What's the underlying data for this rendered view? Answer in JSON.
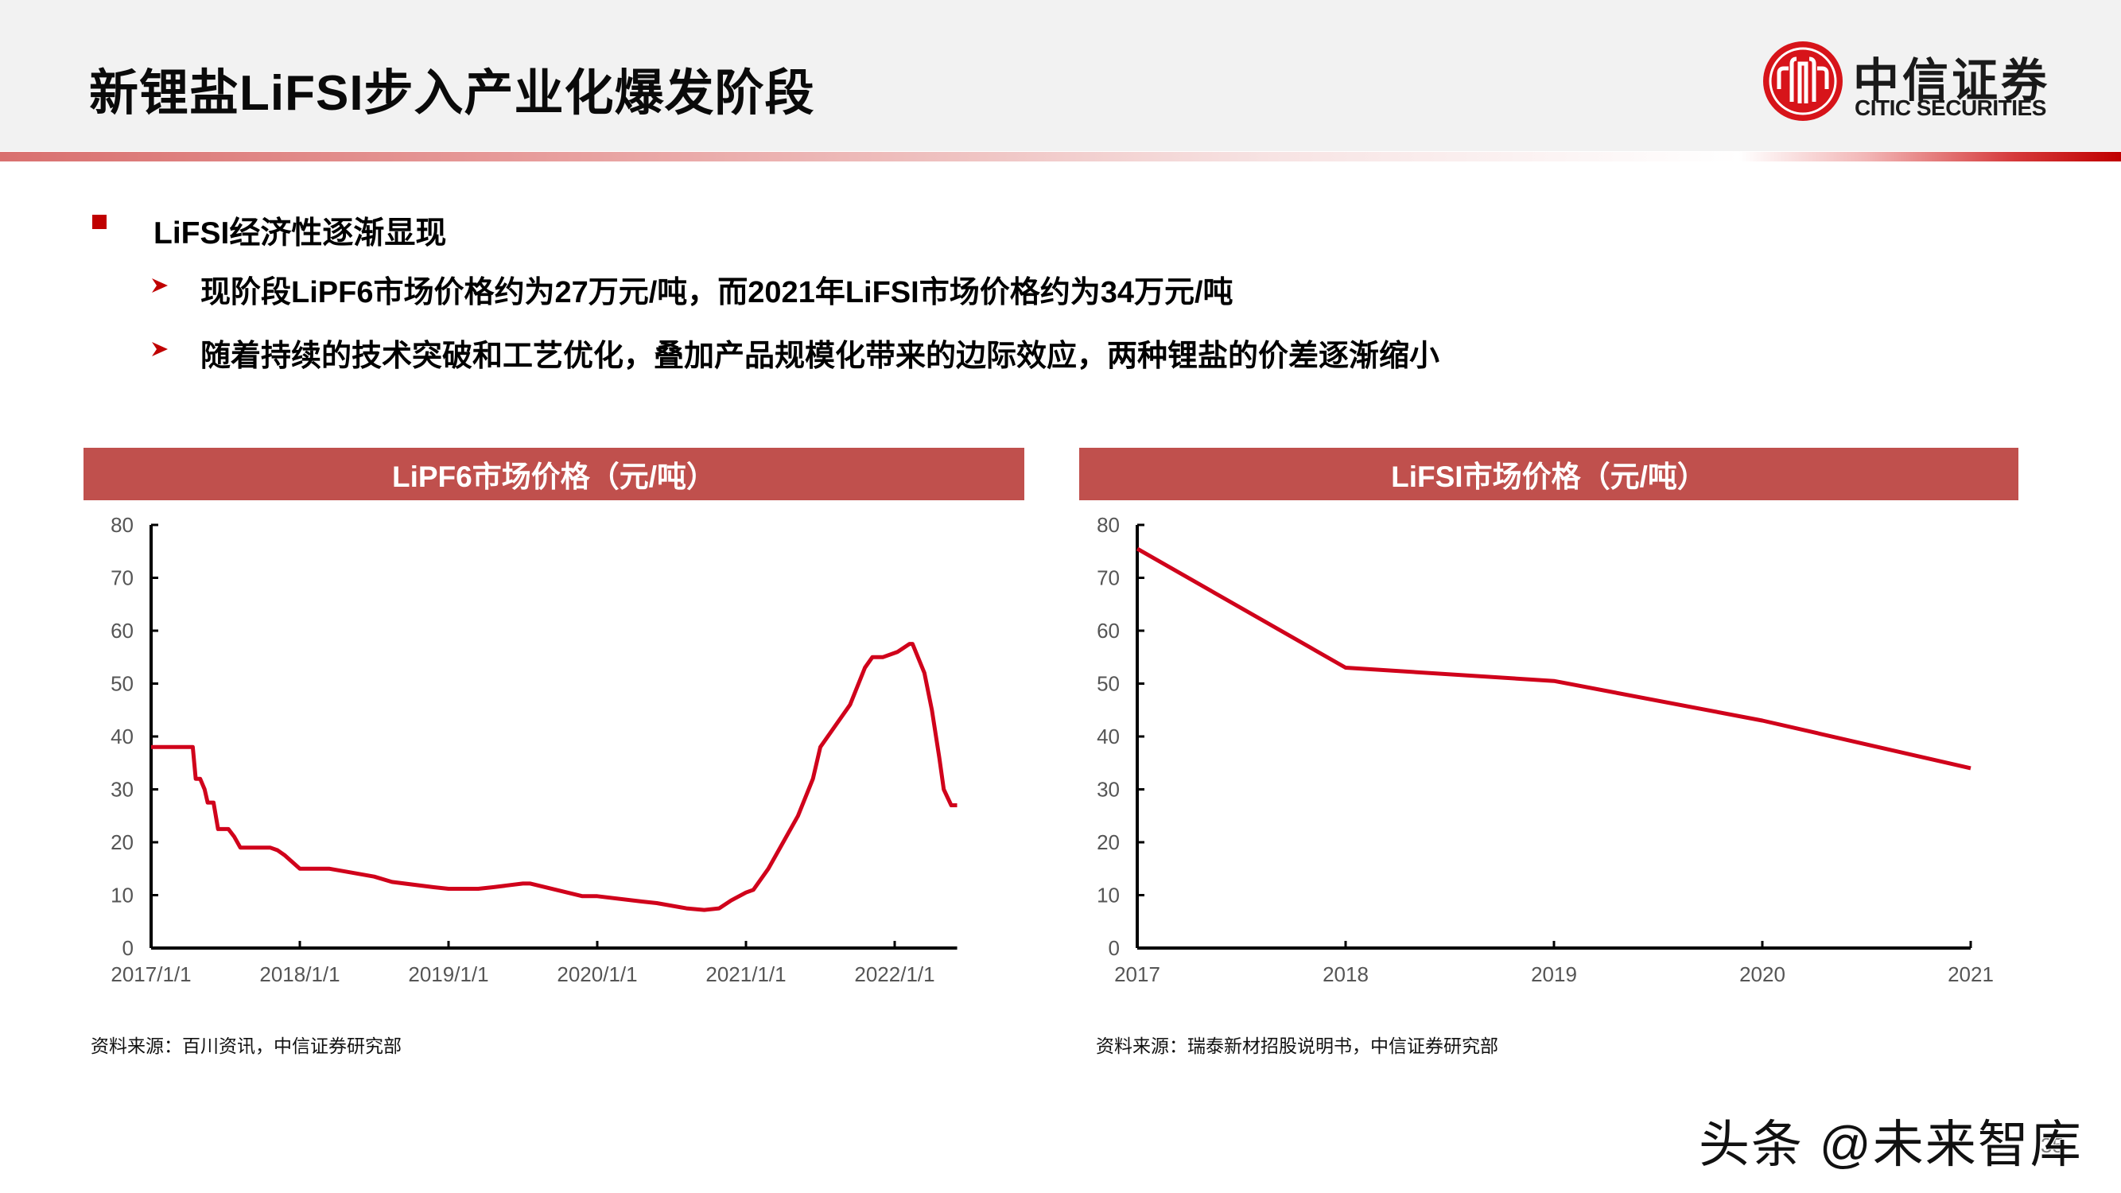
{
  "header": {
    "title": "新锂盐LiFSI步入产业化爆发阶段",
    "logo": {
      "cn": "中信证券",
      "en": "CITIC SECURITIES",
      "icon": "citic-logo-icon"
    }
  },
  "bullets": {
    "main": "LiFSI经济性逐渐显现",
    "subs": [
      "现阶段LiPF6市场价格约为27万元/吨，而2021年LiFSI市场价格约为34万元/吨",
      "随着持续的技术突破和工艺优化，叠加产品规模化带来的边际效应，两种锂盐的价差逐渐缩小"
    ]
  },
  "colors": {
    "accent": "#c00000",
    "chart_header": "#c0504d",
    "line": "#d0021b",
    "header_bg": "#f2f2f2"
  },
  "charts": {
    "left": {
      "header": "LiPF6市场价格（元/吨）",
      "source": "资料来源：百川资讯，中信证券研究部"
    },
    "right": {
      "header": "LiFSI市场价格（元/吨）",
      "source": "资料来源：瑞泰新材招股说明书，中信证券研究部"
    }
  },
  "chart_data": [
    {
      "type": "line",
      "title": "LiPF6市场价格（元/吨）",
      "xlabel": "",
      "ylabel": "",
      "ylim": [
        0,
        80
      ],
      "yticks": [
        0,
        10,
        20,
        30,
        40,
        50,
        60,
        70,
        80
      ],
      "xticks": [
        "2017/1/1",
        "2018/1/1",
        "2019/1/1",
        "2020/1/1",
        "2021/1/1",
        "2022/1/1"
      ],
      "grid": false,
      "legend": null,
      "series": [
        {
          "name": "LiPF6",
          "x": [
            2017.0,
            2017.28,
            2017.3,
            2017.33,
            2017.36,
            2017.38,
            2017.42,
            2017.45,
            2017.52,
            2017.56,
            2017.6,
            2017.8,
            2017.85,
            2017.9,
            2018.0,
            2018.2,
            2018.3,
            2018.5,
            2018.62,
            2018.9,
            2019.0,
            2019.2,
            2019.3,
            2019.5,
            2019.55,
            2019.9,
            2020.0,
            2020.3,
            2020.4,
            2020.6,
            2020.72,
            2020.82,
            2020.9,
            2021.0,
            2021.05,
            2021.15,
            2021.25,
            2021.35,
            2021.45,
            2021.5,
            2021.6,
            2021.7,
            2021.8,
            2021.85,
            2021.92,
            2022.02,
            2022.1,
            2022.12,
            2022.2,
            2022.25,
            2022.3,
            2022.33,
            2022.38,
            2022.42
          ],
          "y": [
            38,
            38,
            32,
            32,
            30,
            27.5,
            27.5,
            22.5,
            22.5,
            21,
            19,
            19,
            18.5,
            17.5,
            15,
            15,
            14.5,
            13.5,
            12.5,
            11.5,
            11.2,
            11.2,
            11.5,
            12.2,
            12.2,
            9.8,
            9.8,
            8.8,
            8.5,
            7.5,
            7.2,
            7.5,
            9,
            10.5,
            11,
            15,
            20,
            25,
            32,
            38,
            42,
            46,
            53,
            55,
            55,
            56,
            57.5,
            57.5,
            52,
            45,
            36,
            30,
            27,
            27
          ]
        }
      ]
    },
    {
      "type": "line",
      "title": "LiFSI市场价格（元/吨）",
      "xlabel": "",
      "ylabel": "",
      "ylim": [
        0,
        80
      ],
      "yticks": [
        0,
        10,
        20,
        30,
        40,
        50,
        60,
        70,
        80
      ],
      "categories": [
        "2017",
        "2018",
        "2019",
        "2020",
        "2021"
      ],
      "grid": false,
      "legend": null,
      "series": [
        {
          "name": "LiFSI",
          "values": [
            75.5,
            53,
            50.5,
            43,
            34
          ]
        }
      ]
    }
  ],
  "footer": {
    "watermark": "头条 @未来智库",
    "page_number": "35"
  }
}
